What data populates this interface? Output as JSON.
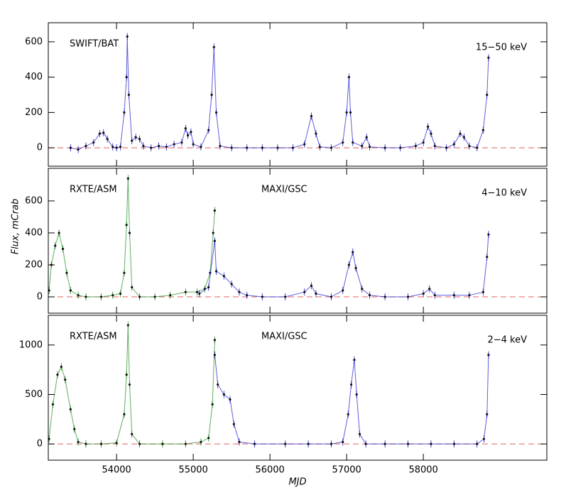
{
  "chart_data": [
    {
      "type": "scatter",
      "annotation": "15−50 keV",
      "series": [
        {
          "name": "SWIFT/BAT",
          "color": "#1a1acc",
          "x": [
            53400,
            53500,
            53600,
            53700,
            53780,
            53830,
            53880,
            53950,
            54000,
            54050,
            54100,
            54130,
            54140,
            54160,
            54200,
            54250,
            54300,
            54350,
            54450,
            54550,
            54650,
            54750,
            54850,
            54900,
            54930,
            54970,
            55000,
            55100,
            55200,
            55240,
            55270,
            55300,
            55350,
            55500,
            55700,
            55900,
            56100,
            56300,
            56450,
            56540,
            56600,
            56650,
            56800,
            56950,
            57000,
            57030,
            57050,
            57080,
            57200,
            57260,
            57300,
            57500,
            57700,
            57900,
            58000,
            58060,
            58100,
            58150,
            58300,
            58400,
            58480,
            58530,
            58600,
            58700,
            58780,
            58830,
            58850
          ],
          "values": [
            0,
            -10,
            10,
            30,
            80,
            85,
            50,
            5,
            0,
            5,
            200,
            400,
            630,
            300,
            40,
            60,
            50,
            10,
            0,
            10,
            5,
            20,
            30,
            110,
            70,
            90,
            20,
            5,
            100,
            300,
            570,
            200,
            10,
            0,
            0,
            0,
            0,
            0,
            20,
            180,
            80,
            5,
            0,
            30,
            200,
            400,
            200,
            30,
            10,
            60,
            5,
            0,
            0,
            10,
            30,
            120,
            80,
            10,
            0,
            20,
            80,
            60,
            10,
            0,
            100,
            300,
            510
          ]
        }
      ],
      "xlim": [
        53110,
        59610
      ],
      "ylim": [
        -104,
        708
      ],
      "xticks": [
        54000,
        55000,
        56000,
        57000,
        58000
      ],
      "show_xtick_labels": false,
      "yticks": [
        0,
        200,
        400,
        600
      ],
      "zero_line": 0,
      "zero_line_color": "#e06060"
    },
    {
      "type": "scatter",
      "annotation": "4−10 keV",
      "ylabel": "Flux, mCrab",
      "series": [
        {
          "name": "RXTE/ASM",
          "color": "#1a8c1a",
          "x": [
            53120,
            53150,
            53200,
            53250,
            53300,
            53350,
            53400,
            53500,
            53600,
            53800,
            53950,
            54050,
            54100,
            54130,
            54150,
            54170,
            54200,
            54300,
            54500,
            54700,
            54900,
            55050,
            55150,
            55220,
            55260,
            55280
          ],
          "values": [
            40,
            200,
            320,
            400,
            300,
            150,
            40,
            10,
            0,
            0,
            10,
            20,
            150,
            450,
            740,
            400,
            60,
            0,
            0,
            10,
            30,
            30,
            50,
            150,
            400,
            540
          ]
        },
        {
          "name": "MAXI/GSC",
          "color": "#1a1acc",
          "x": [
            55080,
            55200,
            55280,
            55300,
            55400,
            55500,
            55600,
            55700,
            55900,
            56200,
            56450,
            56540,
            56600,
            56800,
            56950,
            57030,
            57080,
            57120,
            57200,
            57300,
            57500,
            57800,
            58000,
            58080,
            58150,
            58400,
            58600,
            58780,
            58830,
            58850
          ],
          "values": [
            20,
            60,
            350,
            160,
            130,
            80,
            30,
            10,
            0,
            0,
            30,
            70,
            20,
            0,
            40,
            200,
            280,
            180,
            50,
            10,
            0,
            0,
            20,
            50,
            10,
            10,
            10,
            30,
            250,
            390
          ]
        }
      ],
      "xlim": [
        53110,
        59610
      ],
      "ylim": [
        -102,
        804
      ],
      "xticks": [
        54000,
        55000,
        56000,
        57000,
        58000
      ],
      "show_xtick_labels": false,
      "yticks": [
        0,
        200,
        400,
        600
      ],
      "zero_line": 0,
      "zero_line_color": "#e06060"
    },
    {
      "type": "scatter",
      "annotation": "2−4 keV",
      "xlabel": "MJD",
      "series": [
        {
          "name": "RXTE/ASM",
          "color": "#1a8c1a",
          "x": [
            53120,
            53170,
            53230,
            53280,
            53330,
            53400,
            53450,
            53500,
            53600,
            53800,
            54000,
            54100,
            54130,
            54150,
            54170,
            54200,
            54300,
            54600,
            54900,
            55100,
            55200,
            55250,
            55280
          ],
          "values": [
            50,
            400,
            700,
            780,
            650,
            350,
            150,
            20,
            0,
            0,
            10,
            300,
            700,
            1200,
            600,
            100,
            0,
            0,
            0,
            20,
            60,
            400,
            1050
          ]
        },
        {
          "name": "MAXI/GSC",
          "color": "#1a1acc",
          "x": [
            55280,
            55320,
            55400,
            55480,
            55530,
            55600,
            55800,
            56200,
            56500,
            56800,
            56950,
            57020,
            57060,
            57100,
            57130,
            57170,
            57250,
            57500,
            57800,
            58100,
            58400,
            58700,
            58790,
            58830,
            58850
          ],
          "values": [
            900,
            600,
            500,
            450,
            200,
            20,
            0,
            0,
            0,
            0,
            20,
            300,
            600,
            850,
            500,
            100,
            0,
            0,
            0,
            0,
            0,
            0,
            50,
            300,
            900
          ]
        }
      ],
      "xlim": [
        53110,
        59610
      ],
      "ylim": [
        -164,
        1300
      ],
      "xticks": [
        54000,
        55000,
        56000,
        57000,
        58000
      ],
      "show_xtick_labels": true,
      "yticks": [
        0,
        500,
        1000
      ],
      "zero_line": 0,
      "zero_line_color": "#e06060"
    }
  ]
}
